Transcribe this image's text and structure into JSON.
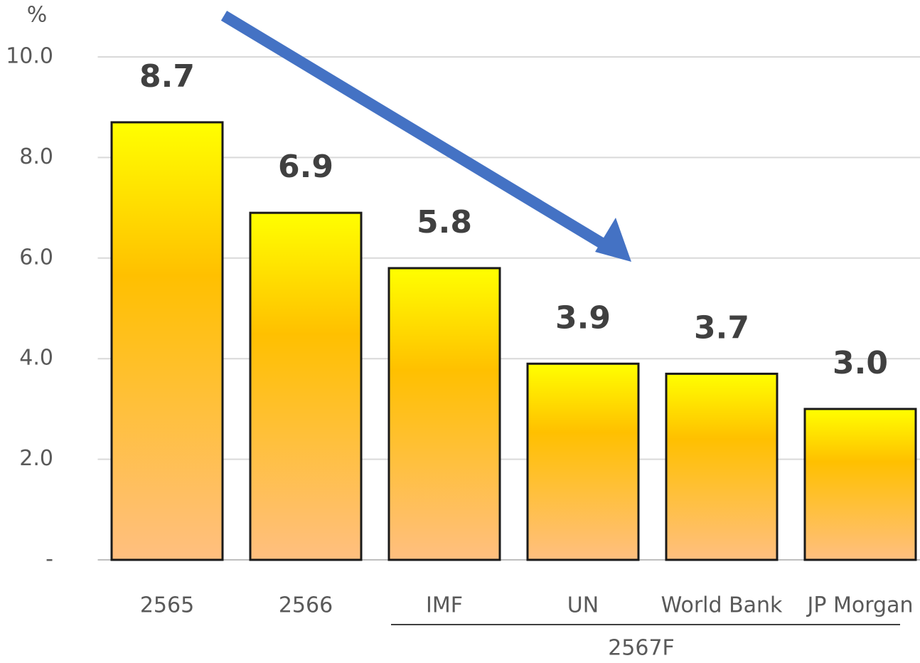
{
  "chart_data": {
    "type": "bar",
    "y_axis_label": "%",
    "categories": [
      "2565",
      "2566",
      "IMF",
      "UN",
      "World Bank",
      "JP Morgan"
    ],
    "values": [
      8.7,
      6.9,
      5.8,
      3.9,
      3.7,
      3.0
    ],
    "value_labels": [
      "8.7",
      "6.9",
      "5.8",
      "3.9",
      "3.7",
      "3.0"
    ],
    "group_label": "2567F",
    "ylim": [
      0,
      10
    ],
    "yticks": [
      {
        "value": 0,
        "label": "-"
      },
      {
        "value": 2,
        "label": "2.0"
      },
      {
        "value": 4,
        "label": "4.0"
      },
      {
        "value": 6,
        "label": "6.0"
      },
      {
        "value": 8,
        "label": "8.0"
      },
      {
        "value": 10,
        "label": "10.0"
      }
    ],
    "grid": true,
    "color": "#ffc000"
  }
}
